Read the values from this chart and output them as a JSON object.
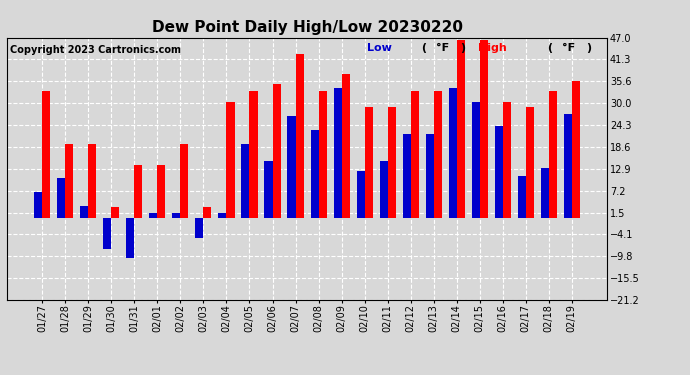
{
  "title": "Dew Point Daily High/Low 20230220",
  "copyright": "Copyright 2023 Cartronics.com",
  "dates": [
    "01/27",
    "01/28",
    "01/29",
    "01/30",
    "01/31",
    "02/01",
    "02/02",
    "02/03",
    "02/04",
    "02/05",
    "02/06",
    "02/07",
    "02/08",
    "02/09",
    "02/10",
    "02/11",
    "02/12",
    "02/13",
    "02/14",
    "02/15",
    "02/16",
    "02/17",
    "02/18",
    "02/19"
  ],
  "high": [
    33.0,
    19.4,
    19.4,
    3.0,
    14.0,
    14.0,
    19.4,
    3.0,
    30.2,
    33.0,
    35.0,
    42.8,
    33.0,
    37.4,
    29.0,
    29.0,
    33.0,
    33.0,
    46.4,
    46.4,
    30.2,
    29.0,
    33.0,
    35.6
  ],
  "low": [
    6.8,
    10.4,
    3.2,
    -8.0,
    -10.4,
    1.4,
    1.4,
    -5.0,
    1.4,
    19.4,
    15.0,
    26.6,
    23.0,
    33.8,
    12.2,
    15.0,
    22.0,
    22.0,
    34.0,
    30.2,
    24.0,
    11.0,
    13.0,
    27.0
  ],
  "ylim": [
    -21.2,
    47.0
  ],
  "yticks": [
    47.0,
    41.3,
    35.6,
    30.0,
    24.3,
    18.6,
    12.9,
    7.2,
    1.5,
    -4.1,
    -9.8,
    -15.5,
    -21.2
  ],
  "bar_width": 0.35,
  "high_color": "#ff0000",
  "low_color": "#0000cc",
  "bg_color": "#d8d8d8",
  "grid_color": "#ffffff",
  "title_fontsize": 11,
  "tick_fontsize": 7,
  "copyright_fontsize": 7,
  "legend_fontsize": 8
}
